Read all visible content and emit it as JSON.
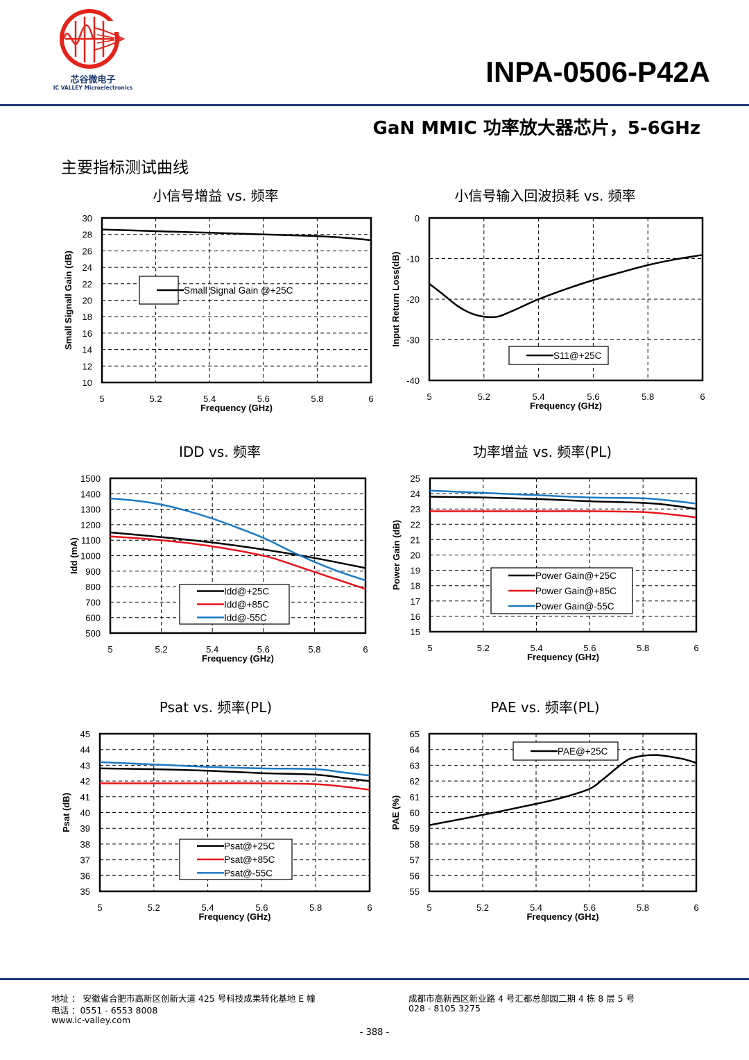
{
  "header": {
    "logo_cn": "芯谷微电子",
    "logo_en": "IC VALLEY Microelectronics",
    "part_number": "INPA-0506-P42A",
    "product_title": "GaN MMIC 功率放大器芯片，5-6GHz",
    "section_heading": "主要指标测试曲线"
  },
  "colors": {
    "rule": "#1f3b73",
    "black": "#000000",
    "red": "#e8141c",
    "blue": "#1a7ac4",
    "logo_red": "#e2231a"
  },
  "chart_data": [
    {
      "id": "ssg",
      "type": "line",
      "title": "小信号增益 vs. 频率",
      "xlabel": "Frequency (GHz)",
      "ylabel": "Small Signall Gain (dB)",
      "xlim": [
        5,
        6
      ],
      "ylim": [
        10,
        30
      ],
      "xticks": [
        "5",
        "5.2",
        "5.4",
        "5.6",
        "5.8",
        "6"
      ],
      "yticks": [
        "10",
        "12",
        "14",
        "16",
        "18",
        "20",
        "22",
        "24",
        "26",
        "28",
        "30"
      ],
      "legend_position": "center-left",
      "series": [
        {
          "name": "Small Signal Gain @+25C",
          "color": "#000000",
          "x": [
            5.0,
            5.1,
            5.2,
            5.3,
            5.4,
            5.5,
            5.6,
            5.7,
            5.8,
            5.9,
            6.0
          ],
          "y": [
            28.6,
            28.5,
            28.4,
            28.3,
            28.2,
            28.1,
            28.0,
            27.9,
            27.8,
            27.6,
            27.3
          ]
        }
      ]
    },
    {
      "id": "s11",
      "type": "line",
      "title": "小信号输入回波损耗 vs. 频率",
      "xlabel": "Frequency (GHz)",
      "ylabel": "Input Return Loss(dB)",
      "xlim": [
        5,
        6
      ],
      "ylim": [
        -40,
        0
      ],
      "xticks": [
        "5",
        "5.2",
        "5.4",
        "5.6",
        "5.8",
        "6"
      ],
      "yticks": [
        "-40",
        "-30",
        "-20",
        "-10",
        "0"
      ],
      "legend_position": "bottom-center",
      "series": [
        {
          "name": "S11@+25C",
          "color": "#000000",
          "x": [
            5.0,
            5.05,
            5.1,
            5.15,
            5.2,
            5.25,
            5.3,
            5.35,
            5.4,
            5.5,
            5.6,
            5.7,
            5.8,
            5.9,
            6.0
          ],
          "y": [
            -16.2,
            -18.8,
            -21.5,
            -23.4,
            -24.3,
            -24.3,
            -23.0,
            -21.5,
            -20.0,
            -17.5,
            -15.3,
            -13.4,
            -11.6,
            -10.2,
            -9.1
          ]
        }
      ]
    },
    {
      "id": "idd",
      "type": "line",
      "title": "IDD vs. 频率",
      "xlabel": "Frequency (GHz)",
      "ylabel": "Idd (mA)",
      "xlim": [
        5,
        6
      ],
      "ylim": [
        500,
        1500
      ],
      "xticks": [
        "5",
        "5.2",
        "5.4",
        "5.6",
        "5.8",
        "6"
      ],
      "yticks": [
        "500",
        "600",
        "700",
        "800",
        "900",
        "1000",
        "1100",
        "1200",
        "1300",
        "1400",
        "1500"
      ],
      "legend_position": "bottom-center",
      "series": [
        {
          "name": "Idd@+25C",
          "color": "#000000",
          "x": [
            5.0,
            5.2,
            5.4,
            5.6,
            5.8,
            6.0
          ],
          "y": [
            1150,
            1120,
            1085,
            1040,
            985,
            920
          ]
        },
        {
          "name": "Idd@+85C",
          "color": "#e8141c",
          "x": [
            5.0,
            5.2,
            5.4,
            5.6,
            5.7,
            5.8,
            5.9,
            6.0
          ],
          "y": [
            1125,
            1100,
            1060,
            1000,
            950,
            895,
            840,
            785
          ]
        },
        {
          "name": "Idd@-55C",
          "color": "#1a7ac4",
          "x": [
            5.0,
            5.1,
            5.2,
            5.3,
            5.4,
            5.5,
            5.6,
            5.7,
            5.8,
            5.9,
            6.0
          ],
          "y": [
            1370,
            1355,
            1330,
            1290,
            1240,
            1180,
            1115,
            1035,
            960,
            895,
            840
          ]
        }
      ]
    },
    {
      "id": "pg",
      "type": "line",
      "title": "功率增益 vs. 频率(PL)",
      "xlabel": "Frequency (GHz)",
      "ylabel": "Power Gain (dB)",
      "xlim": [
        5,
        6
      ],
      "ylim": [
        15,
        25
      ],
      "xticks": [
        "5",
        "5.2",
        "5.4",
        "5.6",
        "5.8",
        "6"
      ],
      "yticks": [
        "15",
        "16",
        "17",
        "18",
        "19",
        "20",
        "21",
        "22",
        "23",
        "24",
        "25"
      ],
      "legend_position": "center",
      "series": [
        {
          "name": "Power Gain@+25C",
          "color": "#000000",
          "x": [
            5.0,
            5.2,
            5.4,
            5.6,
            5.8,
            5.9,
            6.0
          ],
          "y": [
            23.8,
            23.75,
            23.65,
            23.5,
            23.4,
            23.25,
            23.0
          ]
        },
        {
          "name": "Power Gain@+85C",
          "color": "#e8141c",
          "x": [
            5.0,
            5.2,
            5.4,
            5.6,
            5.8,
            5.9,
            6.0
          ],
          "y": [
            22.85,
            22.85,
            22.85,
            22.85,
            22.8,
            22.65,
            22.45
          ]
        },
        {
          "name": "Power Gain@-55C",
          "color": "#1a7ac4",
          "x": [
            5.0,
            5.2,
            5.4,
            5.6,
            5.8,
            5.9,
            6.0
          ],
          "y": [
            24.2,
            24.05,
            23.9,
            23.75,
            23.7,
            23.55,
            23.35
          ]
        }
      ]
    },
    {
      "id": "psat",
      "type": "line",
      "title": "Psat vs. 频率(PL)",
      "xlabel": "Frequency (GHz)",
      "ylabel": "Psat (dB)",
      "xlim": [
        5,
        6
      ],
      "ylim": [
        35,
        45
      ],
      "xticks": [
        "5",
        "5.2",
        "5.4",
        "5.6",
        "5.8",
        "6"
      ],
      "yticks": [
        "35",
        "36",
        "37",
        "38",
        "39",
        "40",
        "41",
        "42",
        "43",
        "44",
        "45"
      ],
      "legend_position": "bottom-center",
      "series": [
        {
          "name": "Psat@+25C",
          "color": "#000000",
          "x": [
            5.0,
            5.2,
            5.4,
            5.6,
            5.8,
            5.9,
            6.0
          ],
          "y": [
            42.8,
            42.75,
            42.65,
            42.5,
            42.4,
            42.2,
            42.0
          ]
        },
        {
          "name": "Psat@+85C",
          "color": "#e8141c",
          "x": [
            5.0,
            5.2,
            5.4,
            5.6,
            5.8,
            5.9,
            6.0
          ],
          "y": [
            41.85,
            41.85,
            41.85,
            41.85,
            41.8,
            41.65,
            41.45
          ]
        },
        {
          "name": "Psat@-55C",
          "color": "#1a7ac4",
          "x": [
            5.0,
            5.2,
            5.4,
            5.6,
            5.8,
            5.9,
            6.0
          ],
          "y": [
            43.2,
            43.05,
            42.9,
            42.8,
            42.75,
            42.55,
            42.35
          ]
        }
      ]
    },
    {
      "id": "pae",
      "type": "line",
      "title": "PAE vs. 频率(PL)",
      "xlabel": "Frequency (GHz)",
      "ylabel": "PAE (%)",
      "xlim": [
        5,
        6
      ],
      "ylim": [
        55,
        65
      ],
      "xticks": [
        "5",
        "5.2",
        "5.4",
        "5.6",
        "5.8",
        "6"
      ],
      "yticks": [
        "55",
        "56",
        "57",
        "58",
        "59",
        "60",
        "61",
        "62",
        "63",
        "64",
        "65"
      ],
      "legend_position": "top-center",
      "series": [
        {
          "name": "PAE@+25C",
          "color": "#000000",
          "x": [
            5.0,
            5.2,
            5.4,
            5.5,
            5.6,
            5.65,
            5.7,
            5.75,
            5.8,
            5.85,
            5.9,
            5.95,
            6.0
          ],
          "y": [
            59.2,
            59.85,
            60.55,
            60.95,
            61.5,
            62.1,
            62.8,
            63.4,
            63.6,
            63.65,
            63.55,
            63.4,
            63.15
          ]
        }
      ]
    }
  ],
  "footer": {
    "address_left": "地址 ： 安徽省合肥市高新区创新大道 425 号科技成果转化基地 E 幢",
    "phone_left": "电话 ：0551 - 6553 8008",
    "website": "www.ic-valley.com",
    "address_right": "成都市高新西区新业路 4 号汇都总部园二期 4 栋 8 层 5 号",
    "phone_right": "028 - 8105 3275",
    "page_number": "- 388 -"
  }
}
